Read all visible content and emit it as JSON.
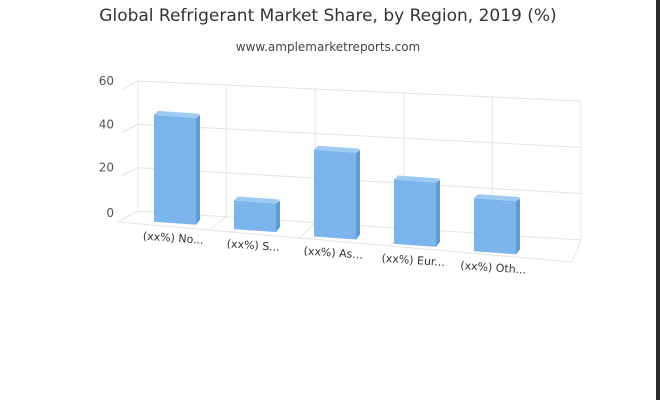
{
  "title": "Global Refrigerant Market Share, by Region, 2019 (%)",
  "subtitle": "www.amplemarketreports.com",
  "chart_data": {
    "type": "bar",
    "categories": [
      "(xx%) No...",
      "(xx%) S...",
      "(xx%) As...",
      "(xx%) Eur...",
      "(xx%) Oth..."
    ],
    "values": [
      46,
      11,
      37,
      27,
      22
    ],
    "ylim": [
      0,
      60
    ],
    "yticks": [
      0,
      20,
      40,
      60
    ],
    "grid": true,
    "three_d": true,
    "bar_color": "#7cb5ec",
    "bar_top_color": "#9ccaf3",
    "bar_side_color": "#5f9bd6"
  }
}
